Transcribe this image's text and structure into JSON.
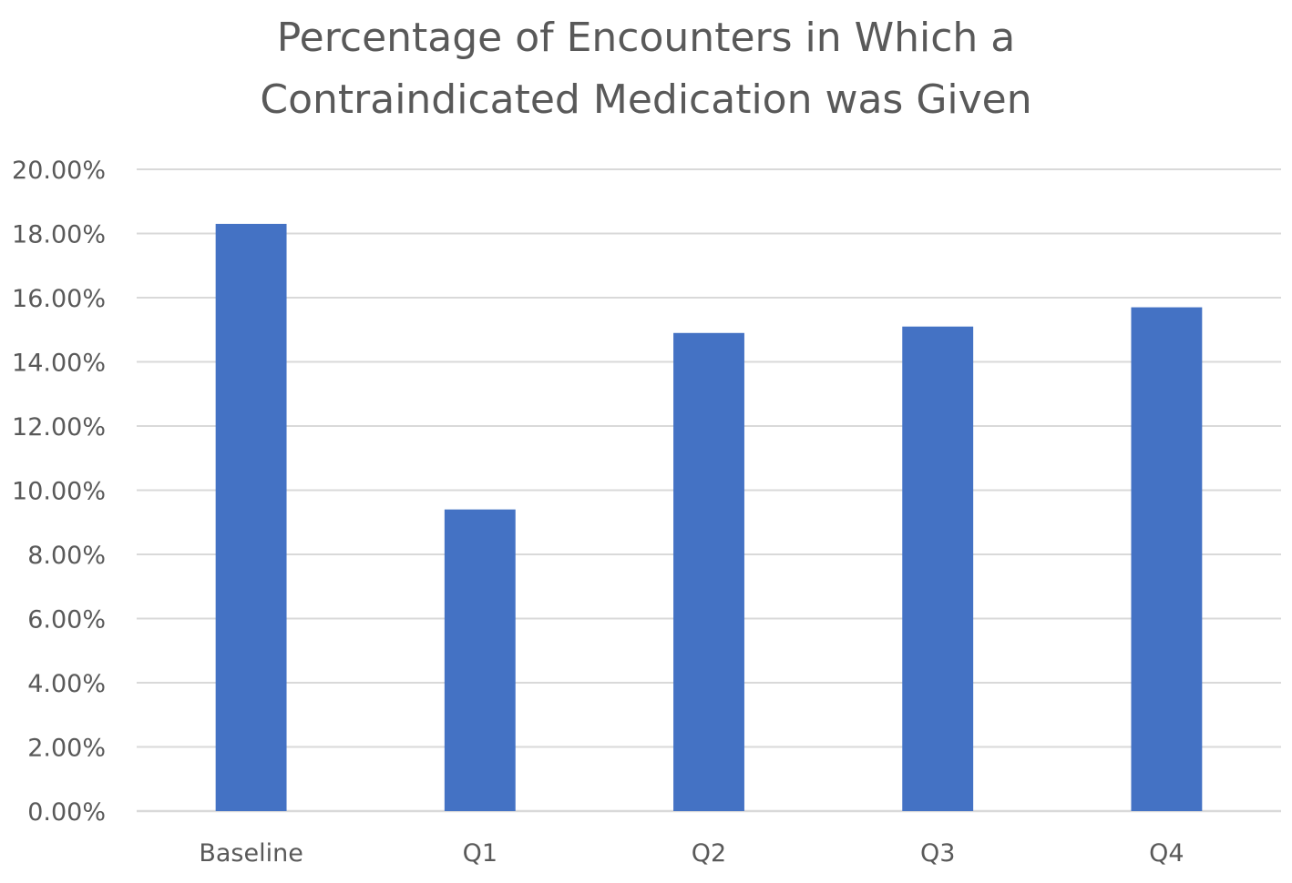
{
  "chart_data": {
    "type": "bar",
    "title_lines": [
      "Percentage of Encounters in Which a",
      "Contraindicated Medication was Given"
    ],
    "categories": [
      "Baseline",
      "Q1",
      "Q2",
      "Q3",
      "Q4"
    ],
    "values": [
      0.183,
      0.094,
      0.149,
      0.151,
      0.157
    ],
    "ylim": [
      0,
      0.2
    ],
    "yticks": [
      0,
      0.02,
      0.04,
      0.06,
      0.08,
      0.1,
      0.12,
      0.14,
      0.16,
      0.18,
      0.2
    ],
    "ytick_labels": [
      "0.00%",
      "2.00%",
      "4.00%",
      "6.00%",
      "8.00%",
      "10.00%",
      "12.00%",
      "14.00%",
      "16.00%",
      "18.00%",
      "20.00%"
    ],
    "xlabel": "",
    "ylabel": "",
    "grid": true,
    "legend": "none",
    "bar_color": "#4472C4",
    "grid_color": "#D9D9D9"
  }
}
